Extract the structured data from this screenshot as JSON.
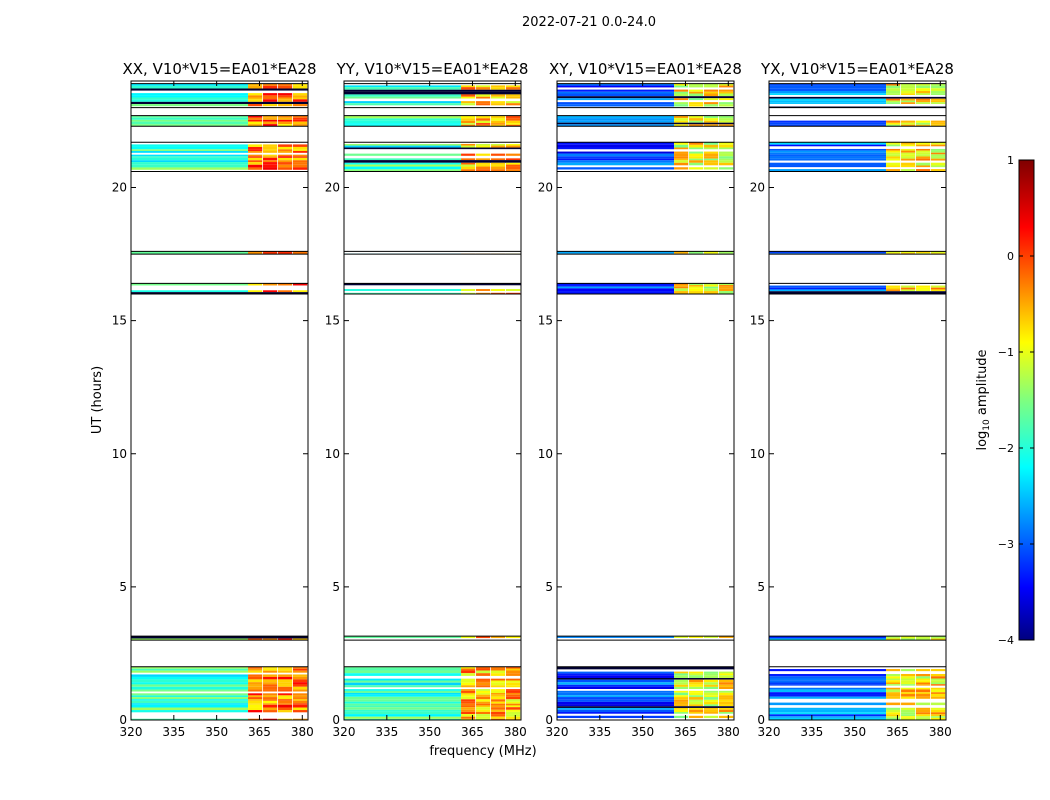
{
  "chart_data": {
    "type": "heatmap",
    "title": "2022-07-21 0.0-24.0",
    "xlabel": "frequency (MHz)",
    "ylabel": "UT (hours)",
    "xlim": [
      320,
      382
    ],
    "ylim": [
      0,
      24
    ],
    "x_ticks": [
      320,
      335,
      350,
      365,
      380
    ],
    "y_ticks": [
      0,
      5,
      10,
      15,
      20
    ],
    "colorbar": {
      "label": "log10 amplitude",
      "label_main": "log",
      "label_sub": "10",
      "label_rest": " amplitude",
      "range": [
        -4,
        1
      ],
      "ticks": [
        1,
        0,
        -1,
        -2,
        -3,
        -4
      ],
      "tick_labels": [
        "1",
        "0",
        "−1",
        "−2",
        "−3",
        "−4"
      ],
      "colormap": "jet"
    },
    "frequency_split_mhz": 361,
    "time_bands_hours": [
      {
        "start": 23.0,
        "end": 23.9
      },
      {
        "start": 22.3,
        "end": 22.7
      },
      {
        "start": 20.6,
        "end": 21.7
      },
      {
        "start": 17.5,
        "end": 17.6
      },
      {
        "start": 16.0,
        "end": 16.4
      },
      {
        "start": 3.0,
        "end": 3.15
      },
      {
        "start": 0.0,
        "end": 2.0
      }
    ],
    "panels": [
      {
        "title": "XX, V10*V15=EA01*EA28",
        "low_band_log_amp": -1.8,
        "high_band_log_amp": -0.2
      },
      {
        "title": "YY, V10*V15=EA01*EA28",
        "low_band_log_amp": -1.8,
        "high_band_log_amp": -0.5
      },
      {
        "title": "XY, V10*V15=EA01*EA28",
        "low_band_log_amp": -3.0,
        "high_band_log_amp": -0.9
      },
      {
        "title": "YX, V10*V15=EA01*EA28",
        "low_band_log_amp": -2.8,
        "high_band_log_amp": -0.8
      }
    ]
  }
}
